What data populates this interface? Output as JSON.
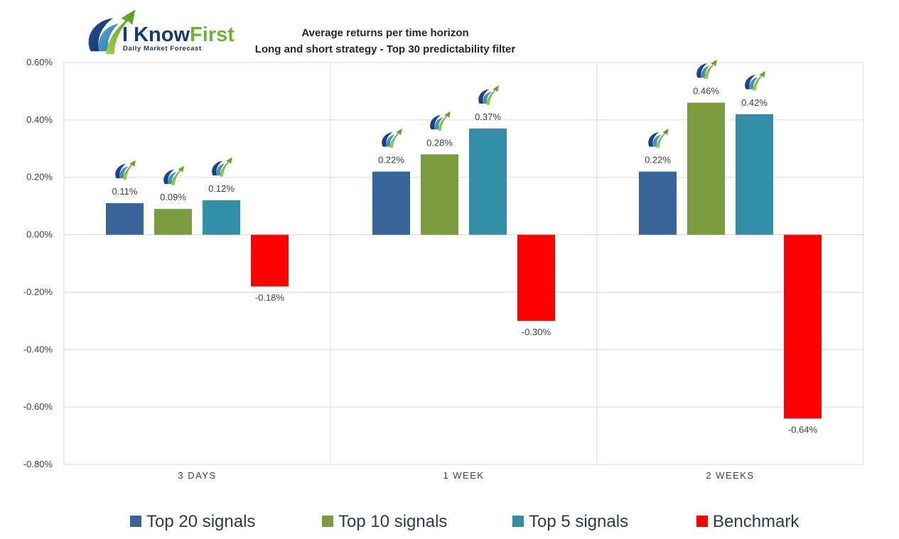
{
  "logo": {
    "word_1": "I Know",
    "word_2": "First",
    "tagline": "Daily Market Forecast"
  },
  "chart_data": {
    "type": "bar",
    "title": "Average returns per time horizon",
    "subtitle": "Long and short strategy - Top 30 predictability filter",
    "categories": [
      "3 DAYS",
      "1 WEEK",
      "2 WEEKS"
    ],
    "series": [
      {
        "name": "Top 20 signals",
        "color": "#376599",
        "values": [
          0.11,
          0.22,
          0.22
        ],
        "labels": [
          "0.11%",
          "0.22%",
          "0.22%"
        ]
      },
      {
        "name": "Top 10 signals",
        "color": "#7a9c3f",
        "values": [
          0.09,
          0.28,
          0.46
        ],
        "labels": [
          "0.09%",
          "0.28%",
          "0.46%"
        ]
      },
      {
        "name": "Top 5 signals",
        "color": "#338fa8",
        "values": [
          0.12,
          0.37,
          0.42
        ],
        "labels": [
          "0.12%",
          "0.37%",
          "0.42%"
        ]
      },
      {
        "name": "Benchmark",
        "color": "#ff0000",
        "values": [
          -0.18,
          -0.3,
          -0.64
        ],
        "labels": [
          "-0.18%",
          "-0.30%",
          "-0.64%"
        ]
      }
    ],
    "ylim": [
      -0.8,
      0.6
    ],
    "yticks": [
      0.6,
      0.4,
      0.2,
      0.0,
      -0.2,
      -0.4,
      -0.6,
      -0.8
    ],
    "ytick_labels": [
      "0.60%",
      "0.40%",
      "0.20%",
      "0.00%",
      "-0.20%",
      "-0.40%",
      "-0.60%",
      "-0.80%"
    ],
    "grid": true,
    "legend_position": "bottom",
    "positive_bar_marker": "i-know-first-mini-logo"
  }
}
